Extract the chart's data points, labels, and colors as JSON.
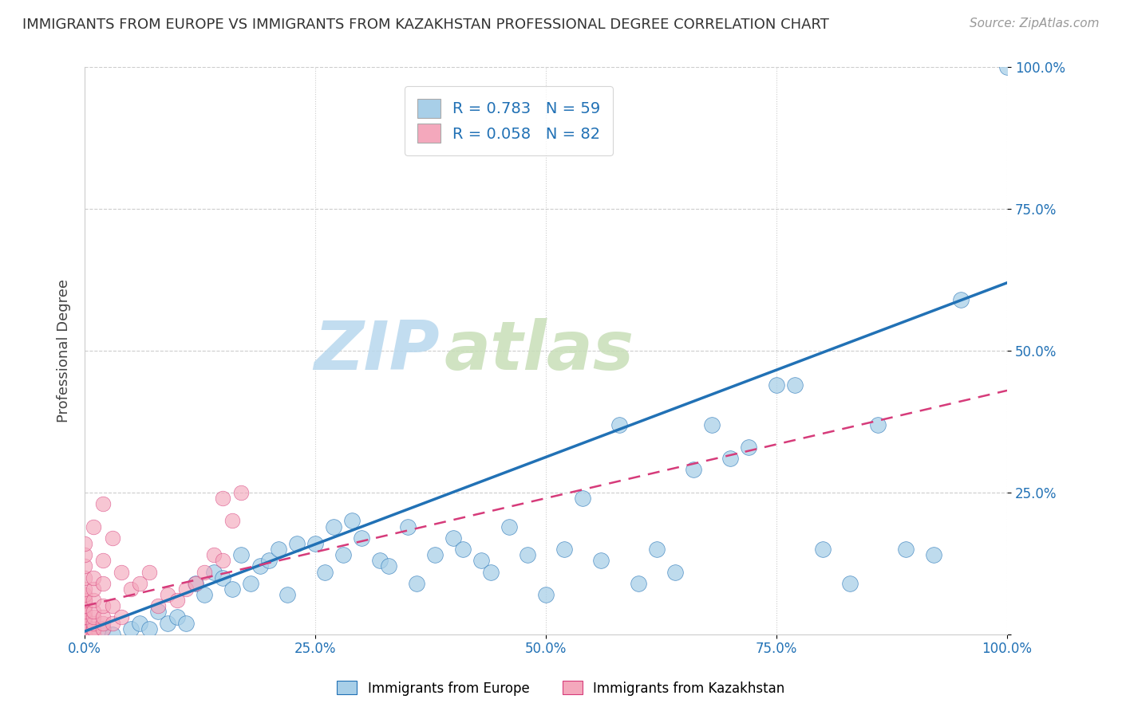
{
  "title": "IMMIGRANTS FROM EUROPE VS IMMIGRANTS FROM KAZAKHSTAN PROFESSIONAL DEGREE CORRELATION CHART",
  "source": "Source: ZipAtlas.com",
  "xlabel_bottom": "Immigrants from Europe",
  "ylabel": "Professional Degree",
  "legend_label_1": "Immigrants from Europe",
  "legend_label_2": "Immigrants from Kazakhstan",
  "watermark_1": "ZIP",
  "watermark_2": "atlas",
  "R1": 0.783,
  "N1": 59,
  "R2": 0.058,
  "N2": 82,
  "color_blue": "#a8cfe8",
  "color_pink": "#f4a8bc",
  "color_blue_dark": "#2171b5",
  "color_pink_dark": "#d63b7a",
  "xlim": [
    0.0,
    1.0
  ],
  "ylim": [
    0.0,
    1.0
  ],
  "xticks": [
    0.0,
    0.25,
    0.5,
    0.75,
    1.0
  ],
  "yticks": [
    0.0,
    0.25,
    0.5,
    0.75,
    1.0
  ],
  "blue_x": [
    0.02,
    0.03,
    0.05,
    0.06,
    0.07,
    0.08,
    0.09,
    0.1,
    0.11,
    0.12,
    0.13,
    0.14,
    0.15,
    0.16,
    0.17,
    0.18,
    0.19,
    0.2,
    0.21,
    0.22,
    0.23,
    0.25,
    0.26,
    0.27,
    0.28,
    0.29,
    0.3,
    0.32,
    0.33,
    0.35,
    0.36,
    0.38,
    0.4,
    0.41,
    0.43,
    0.44,
    0.46,
    0.48,
    0.5,
    0.52,
    0.54,
    0.56,
    0.58,
    0.6,
    0.62,
    0.64,
    0.66,
    0.68,
    0.7,
    0.72,
    0.75,
    0.77,
    0.8,
    0.83,
    0.86,
    0.89,
    0.92,
    0.95,
    1.0
  ],
  "blue_y": [
    0.01,
    0.0,
    0.01,
    0.02,
    0.01,
    0.04,
    0.02,
    0.03,
    0.02,
    0.09,
    0.07,
    0.11,
    0.1,
    0.08,
    0.14,
    0.09,
    0.12,
    0.13,
    0.15,
    0.07,
    0.16,
    0.16,
    0.11,
    0.19,
    0.14,
    0.2,
    0.17,
    0.13,
    0.12,
    0.19,
    0.09,
    0.14,
    0.17,
    0.15,
    0.13,
    0.11,
    0.19,
    0.14,
    0.07,
    0.15,
    0.24,
    0.13,
    0.37,
    0.09,
    0.15,
    0.11,
    0.29,
    0.37,
    0.31,
    0.33,
    0.44,
    0.44,
    0.15,
    0.09,
    0.37,
    0.15,
    0.14,
    0.59,
    1.0
  ],
  "pink_x": [
    0.0,
    0.0,
    0.0,
    0.0,
    0.0,
    0.0,
    0.0,
    0.0,
    0.0,
    0.0,
    0.0,
    0.0,
    0.0,
    0.0,
    0.0,
    0.0,
    0.0,
    0.0,
    0.0,
    0.0,
    0.0,
    0.0,
    0.0,
    0.0,
    0.0,
    0.0,
    0.0,
    0.0,
    0.0,
    0.0,
    0.0,
    0.0,
    0.0,
    0.0,
    0.0,
    0.0,
    0.0,
    0.0,
    0.0,
    0.0,
    0.0,
    0.0,
    0.0,
    0.0,
    0.0,
    0.0,
    0.01,
    0.01,
    0.01,
    0.01,
    0.01,
    0.01,
    0.01,
    0.01,
    0.01,
    0.01,
    0.02,
    0.02,
    0.02,
    0.02,
    0.02,
    0.02,
    0.02,
    0.03,
    0.03,
    0.03,
    0.04,
    0.04,
    0.05,
    0.06,
    0.07,
    0.08,
    0.09,
    0.1,
    0.11,
    0.12,
    0.13,
    0.14,
    0.15,
    0.15,
    0.16,
    0.17
  ],
  "pink_y": [
    0.0,
    0.0,
    0.0,
    0.0,
    0.0,
    0.0,
    0.0,
    0.0,
    0.0,
    0.0,
    0.0,
    0.0,
    0.0,
    0.0,
    0.0,
    0.0,
    0.0,
    0.0,
    0.0,
    0.0,
    0.01,
    0.01,
    0.01,
    0.01,
    0.01,
    0.01,
    0.01,
    0.02,
    0.02,
    0.02,
    0.02,
    0.02,
    0.03,
    0.03,
    0.03,
    0.04,
    0.05,
    0.05,
    0.06,
    0.06,
    0.07,
    0.08,
    0.1,
    0.12,
    0.14,
    0.16,
    0.0,
    0.01,
    0.01,
    0.02,
    0.03,
    0.04,
    0.06,
    0.08,
    0.1,
    0.19,
    0.01,
    0.02,
    0.03,
    0.05,
    0.09,
    0.13,
    0.23,
    0.02,
    0.05,
    0.17,
    0.03,
    0.11,
    0.08,
    0.09,
    0.11,
    0.05,
    0.07,
    0.06,
    0.08,
    0.09,
    0.11,
    0.14,
    0.13,
    0.24,
    0.2,
    0.25
  ]
}
